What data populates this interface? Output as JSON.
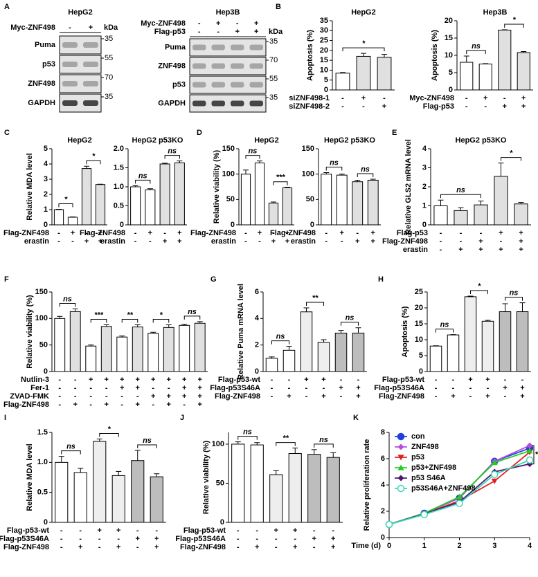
{
  "panel_labels": [
    "A",
    "B",
    "C",
    "D",
    "E",
    "F",
    "G",
    "H",
    "I",
    "J",
    "K"
  ],
  "blots": [
    {
      "title": "HepG2",
      "unit": "kDa",
      "conditions": [
        {
          "name": "Myc-ZNF498",
          "signs": [
            "-",
            "+"
          ]
        }
      ],
      "rows": [
        {
          "name": "Puma",
          "kda": 35
        },
        {
          "name": "p53",
          "kda": 55
        },
        {
          "name": "ZNF498",
          "kda": 70
        },
        {
          "name": "GAPDH",
          "kda": 35
        }
      ]
    },
    {
      "title": "Hep3B",
      "unit": "kDa",
      "conditions": [
        {
          "name": "Myc-ZNF498",
          "signs": [
            "-",
            "+",
            "-",
            "+"
          ]
        },
        {
          "name": "Flag-p53",
          "signs": [
            "-",
            "-",
            "+",
            "+"
          ]
        }
      ],
      "rows": [
        {
          "name": "Puma",
          "kda": 35
        },
        {
          "name": "ZNF498",
          "kda": 70
        },
        {
          "name": "p53",
          "kda": 55
        },
        {
          "name": "GAPDH",
          "kda": 35
        }
      ]
    }
  ],
  "chart_data": [
    {
      "type": "bar",
      "title": "HepG2",
      "ylabel": "Apoptosis (%)",
      "values": [
        8.5,
        17,
        16.5
      ],
      "errors": [
        0.3,
        1.5,
        1.5
      ],
      "colors": [
        "#ffffff",
        "#e0e0e0",
        "#e0e0e0"
      ],
      "ylim": [
        0,
        35
      ],
      "yticks": [
        0,
        5,
        10,
        15,
        20,
        25,
        30,
        35
      ],
      "conditions": [
        {
          "name": "siZNF498-1",
          "signs": [
            "-",
            "+",
            "-"
          ]
        },
        {
          "name": "siZNF498-2",
          "signs": [
            "-",
            "-",
            "+"
          ]
        }
      ],
      "annotations": [
        {
          "text": "*",
          "bars": [
            0,
            2
          ]
        }
      ]
    },
    {
      "type": "bar",
      "title": "Hep3B",
      "ylabel": "Apoptosis (%)",
      "values": [
        8,
        7.5,
        17.3,
        10.8
      ],
      "errors": [
        1.8,
        0.1,
        0.1,
        0.3
      ],
      "colors": [
        "#ffffff",
        "#ffffff",
        "#e0e0e0",
        "#e0e0e0"
      ],
      "ylim": [
        0,
        20
      ],
      "yticks": [
        0,
        5,
        10,
        15,
        20
      ],
      "conditions": [
        {
          "name": "Myc-ZNF498",
          "signs": [
            "-",
            "+",
            "-",
            "+"
          ]
        },
        {
          "name": "Flag-p53",
          "signs": [
            "-",
            "-",
            "+",
            "+"
          ]
        }
      ],
      "annotations": [
        {
          "text": "ns",
          "bars": [
            0,
            1
          ]
        },
        {
          "text": "*",
          "bars": [
            2,
            3
          ]
        }
      ]
    },
    {
      "type": "bar",
      "title": "HepG2",
      "ylabel": "Relative MDA level",
      "values": [
        1,
        0.5,
        3.7,
        2.65
      ],
      "errors": [
        0.02,
        0.02,
        0.15,
        0.02
      ],
      "colors": [
        "#ffffff",
        "#ffffff",
        "#e0e0e0",
        "#e0e0e0"
      ],
      "ylim": [
        0,
        5
      ],
      "yticks": [
        0,
        1,
        2,
        3,
        4,
        5
      ],
      "conditions": [
        {
          "name": "Flag-ZNF498",
          "signs": [
            "-",
            "+",
            "-",
            "+"
          ]
        },
        {
          "name": "erastin",
          "signs": [
            "-",
            "-",
            "+",
            "+"
          ]
        }
      ],
      "annotations": [
        {
          "text": "*",
          "bars": [
            0,
            1
          ]
        },
        {
          "text": "*",
          "bars": [
            2,
            3
          ]
        }
      ]
    },
    {
      "type": "bar",
      "title": "HepG2 p53KO",
      "values": [
        1.0,
        0.92,
        1.6,
        1.63
      ],
      "errors": [
        0.03,
        0.03,
        0.02,
        0.05
      ],
      "colors": [
        "#ffffff",
        "#ffffff",
        "#e0e0e0",
        "#e0e0e0"
      ],
      "ylim": [
        0,
        2
      ],
      "yticks": [
        0,
        0.5,
        {
          "value": 1,
          "label": "1.0"
        },
        1.5,
        {
          "value": 2,
          "label": "2.0"
        }
      ],
      "conditions": [
        {
          "name": "Flag-ZNF498",
          "signs": [
            "-",
            "+",
            "-",
            "+"
          ]
        },
        {
          "name": "erastin",
          "signs": [
            "-",
            "-",
            "+",
            "+"
          ]
        }
      ],
      "annotations": [
        {
          "text": "ns",
          "bars": [
            0,
            1
          ]
        },
        {
          "text": "ns",
          "bars": [
            2,
            3
          ]
        }
      ]
    },
    {
      "type": "bar",
      "title": "HepG2",
      "ylabel": "Relative viability  (%)",
      "values": [
        100,
        122,
        43,
        73
      ],
      "errors": [
        8,
        4,
        2,
        1
      ],
      "colors": [
        "#ffffff",
        "#ffffff",
        "#e0e0e0",
        "#e0e0e0"
      ],
      "ylim": [
        0,
        150
      ],
      "yticks": [
        0,
        50,
        100,
        150
      ],
      "conditions": [
        {
          "name": "Flag-ZNF498",
          "signs": [
            "-",
            "+",
            "-",
            "+"
          ]
        },
        {
          "name": "erastin",
          "signs": [
            "-",
            "-",
            "+",
            "+"
          ]
        }
      ],
      "annotations": [
        {
          "text": "ns",
          "bars": [
            0,
            1
          ]
        },
        {
          "text": "***",
          "bars": [
            2,
            3
          ]
        }
      ]
    },
    {
      "type": "bar",
      "title": "HepG2 p53KO",
      "values": [
        100,
        98,
        85,
        88
      ],
      "errors": [
        3,
        2,
        3,
        2
      ],
      "colors": [
        "#ffffff",
        "#ffffff",
        "#e0e0e0",
        "#e0e0e0"
      ],
      "ylim": [
        0,
        150
      ],
      "yticks": [
        0,
        50,
        100,
        150
      ],
      "conditions": [
        {
          "name": "Flag-ZNF498",
          "signs": [
            "-",
            "+",
            "-",
            "+"
          ]
        },
        {
          "name": "erastin",
          "signs": [
            "-",
            "-",
            "+",
            "+"
          ]
        }
      ],
      "annotations": [
        {
          "text": "ns",
          "bars": [
            0,
            1
          ]
        },
        {
          "text": "ns",
          "bars": [
            2,
            3
          ]
        }
      ]
    },
    {
      "type": "bar",
      "title": "HepG2 p53KO",
      "ylabel": "Relative GLS2 mRNA level",
      "values": [
        1.0,
        0.75,
        1.05,
        2.55,
        1.1
      ],
      "errors": [
        0.3,
        0.15,
        0.2,
        0.7,
        0.08
      ],
      "colors": [
        "#ffffff",
        "#e0e0e0",
        "#e0e0e0",
        "#e0e0e0",
        "#e0e0e0"
      ],
      "ylim": [
        0,
        4
      ],
      "yticks": [
        0,
        1,
        2,
        3,
        4
      ],
      "conditions": [
        {
          "name": "Flag-p53",
          "signs": [
            "-",
            "-",
            "-",
            "+",
            "+"
          ]
        },
        {
          "name": "Flag-ZNF498",
          "signs": [
            "-",
            "-",
            "+",
            "-",
            "+"
          ]
        },
        {
          "name": "erastin",
          "signs": [
            "-",
            "+",
            "+",
            "+",
            "+"
          ]
        }
      ],
      "annotations": [
        {
          "text": "ns",
          "bars": [
            0,
            2
          ]
        },
        {
          "text": "*",
          "bars": [
            3,
            4
          ]
        }
      ]
    },
    {
      "type": "bar",
      "ylabel": "Relative viability  (%)",
      "values": [
        100,
        113,
        48,
        85,
        65,
        84,
        72,
        83,
        87,
        91
      ],
      "errors": [
        4,
        5,
        2,
        3,
        2,
        4,
        2,
        5,
        2,
        3
      ],
      "colors": [
        "#ffffff",
        "#e0e0e0",
        "#ffffff",
        "#e0e0e0",
        "#ffffff",
        "#e0e0e0",
        "#ffffff",
        "#e0e0e0",
        "#ffffff",
        "#e0e0e0"
      ],
      "ylim": [
        0,
        150
      ],
      "yticks": [
        0,
        50,
        100,
        150
      ],
      "conditions": [
        {
          "name": "Nutlin-3",
          "signs": [
            "-",
            "-",
            "+",
            "+",
            "+",
            "+",
            "+",
            "+",
            "+",
            "+"
          ]
        },
        {
          "name": "Fer-1",
          "signs": [
            "-",
            "-",
            "-",
            "-",
            "+",
            "+",
            "-",
            "-",
            "+",
            "+"
          ]
        },
        {
          "name": "ZVAD-FMK",
          "signs": [
            "-",
            "-",
            "-",
            "-",
            "-",
            "-",
            "+",
            "+",
            "+",
            "+"
          ]
        },
        {
          "name": "Flag-ZNF498",
          "signs": [
            "-",
            "+",
            "-",
            "+",
            "-",
            "+",
            "-",
            "+",
            "-",
            "+"
          ]
        }
      ],
      "annotations": [
        {
          "text": "ns",
          "bars": [
            0,
            1
          ]
        },
        {
          "text": "***",
          "bars": [
            2,
            3
          ]
        },
        {
          "text": "**",
          "bars": [
            4,
            5
          ]
        },
        {
          "text": "*",
          "bars": [
            6,
            7
          ]
        },
        {
          "text": "ns",
          "bars": [
            8,
            9
          ]
        }
      ]
    },
    {
      "type": "bar",
      "ylabel": "Relative Puma mRNA level",
      "values": [
        1.0,
        1.6,
        4.5,
        2.2,
        2.9,
        2.9
      ],
      "errors": [
        0.1,
        0.3,
        0.3,
        0.2,
        0.2,
        0.4
      ],
      "colors": [
        "#ffffff",
        "#ffffff",
        "#eeeeee",
        "#eeeeee",
        "#bdbdbd",
        "#bdbdbd"
      ],
      "ylim": [
        0,
        6
      ],
      "yticks": [
        0,
        2,
        4,
        6
      ],
      "conditions": [
        {
          "name": "Flag-p53-wt",
          "signs": [
            "-",
            "-",
            "+",
            "+",
            "-",
            "-"
          ]
        },
        {
          "name": "Flag-p53S46A",
          "signs": [
            "-",
            "-",
            "-",
            "-",
            "+",
            "+"
          ]
        },
        {
          "name": "Flag-ZNF498",
          "signs": [
            "-",
            "+",
            "-",
            "+",
            "-",
            "+"
          ]
        }
      ],
      "annotations": [
        {
          "text": "ns",
          "bars": [
            0,
            1
          ]
        },
        {
          "text": "**",
          "bars": [
            2,
            3
          ]
        },
        {
          "text": "ns",
          "bars": [
            4,
            5
          ]
        }
      ]
    },
    {
      "type": "bar",
      "ylabel": "Apoptosis (%)",
      "values": [
        8,
        11.5,
        23.5,
        15.8,
        18.8,
        18.8
      ],
      "errors": [
        0.1,
        0.1,
        0.2,
        0.3,
        2.5,
        2.8
      ],
      "colors": [
        "#ffffff",
        "#ffffff",
        "#eeeeee",
        "#eeeeee",
        "#bdbdbd",
        "#bdbdbd"
      ],
      "ylim": [
        0,
        25
      ],
      "yticks": [
        0,
        5,
        10,
        15,
        20,
        25
      ],
      "conditions": [
        {
          "name": "Flag-p53-wt",
          "signs": [
            "-",
            "-",
            "+",
            "+",
            "-",
            "-"
          ]
        },
        {
          "name": "Flag-p53S46A",
          "signs": [
            "-",
            "-",
            "-",
            "-",
            "+",
            "+"
          ]
        },
        {
          "name": "Flag-ZNF498",
          "signs": [
            "-",
            "+",
            "-",
            "+",
            "-",
            "+"
          ]
        }
      ],
      "annotations": [
        {
          "text": "ns",
          "bars": [
            0,
            1
          ]
        },
        {
          "text": "*",
          "bars": [
            2,
            3
          ]
        },
        {
          "text": "ns",
          "bars": [
            4,
            5
          ]
        }
      ]
    },
    {
      "type": "bar",
      "ylabel": "Relative MDA  level",
      "values": [
        1.0,
        0.83,
        1.35,
        0.78,
        1.03,
        0.76
      ],
      "errors": [
        0.1,
        0.07,
        0.04,
        0.07,
        0.17,
        0.05
      ],
      "colors": [
        "#ffffff",
        "#ffffff",
        "#eeeeee",
        "#eeeeee",
        "#bdbdbd",
        "#bdbdbd"
      ],
      "ylim": [
        0,
        1.5
      ],
      "yticks": [
        0,
        0.5,
        {
          "value": 1,
          "label": "1.0"
        },
        1.5
      ],
      "conditions": [
        {
          "name": "Flag-p53-wt",
          "signs": [
            "-",
            "-",
            "+",
            "+",
            "-",
            "-"
          ]
        },
        {
          "name": "Flag-p53S46A",
          "signs": [
            "-",
            "-",
            "-",
            "-",
            "+",
            "+"
          ]
        },
        {
          "name": "Flag-ZNF498",
          "signs": [
            "-",
            "+",
            "-",
            "+",
            "-",
            "+"
          ]
        }
      ],
      "annotations": [
        {
          "text": "ns",
          "bars": [
            0,
            1
          ]
        },
        {
          "text": "*",
          "bars": [
            2,
            3
          ]
        },
        {
          "text": "ns",
          "bars": [
            4,
            5
          ]
        }
      ]
    },
    {
      "type": "bar",
      "ylabel": "Relative viability (%)",
      "values": [
        100,
        99,
        61,
        88,
        87,
        83
      ],
      "errors": [
        3,
        3,
        5,
        7,
        6,
        6
      ],
      "colors": [
        "#ffffff",
        "#ffffff",
        "#eeeeee",
        "#eeeeee",
        "#bdbdbd",
        "#bdbdbd"
      ],
      "ylim": [
        0,
        115
      ],
      "yticks": [
        0,
        50,
        100
      ],
      "conditions": [
        {
          "name": "Flag-p53-wt",
          "signs": [
            "-",
            "-",
            "+",
            "+",
            "-",
            "-"
          ]
        },
        {
          "name": "Flag-p53S46A",
          "signs": [
            "-",
            "-",
            "-",
            "-",
            "+",
            "+"
          ]
        },
        {
          "name": "Flag-ZNF498",
          "signs": [
            "-",
            "+",
            "-",
            "+",
            "-",
            "+"
          ]
        }
      ],
      "annotations": [
        {
          "text": "ns",
          "bars": [
            0,
            1
          ]
        },
        {
          "text": "**",
          "bars": [
            2,
            3
          ]
        },
        {
          "text": "ns",
          "bars": [
            4,
            5
          ]
        }
      ]
    },
    {
      "type": "line",
      "ylabel": "Relative proliferation rate",
      "xlabel": "Time (d)",
      "x": [
        0,
        1,
        2,
        3,
        4
      ],
      "xlim": [
        0,
        4
      ],
      "xticks": [
        0,
        1,
        2,
        3,
        4
      ],
      "ylim": [
        0,
        8
      ],
      "yticks": [
        0,
        2,
        4,
        6,
        8
      ],
      "legend": "upper left",
      "series": [
        {
          "name": "con",
          "color": "#1f3fe0",
          "marker": "circle",
          "values": [
            1,
            1.85,
            3.0,
            5.8,
            6.8
          ]
        },
        {
          "name": "ZNF498",
          "color": "#b44fd8",
          "marker": "diamond",
          "values": [
            1,
            1.85,
            3.0,
            5.8,
            7.0
          ]
        },
        {
          "name": "p53",
          "color": "#e02020",
          "marker": "triangle-down",
          "values": [
            1,
            1.8,
            2.8,
            4.3,
            6.5
          ]
        },
        {
          "name": "p53+ZNF498",
          "color": "#22cc22",
          "marker": "triangle",
          "values": [
            1,
            1.85,
            3.1,
            5.7,
            6.6
          ]
        },
        {
          "name": "p53 S46A",
          "color": "#4b1a6e",
          "marker": "diamond",
          "values": [
            1,
            1.8,
            2.7,
            5.0,
            5.6
          ]
        },
        {
          "name": "p53S46A+ZNF498",
          "color": "#3ed8b8",
          "marker": "circle-open",
          "values": [
            1,
            1.75,
            2.6,
            4.8,
            5.9
          ]
        }
      ],
      "annotations": [
        {
          "text": "**"
        }
      ]
    }
  ]
}
